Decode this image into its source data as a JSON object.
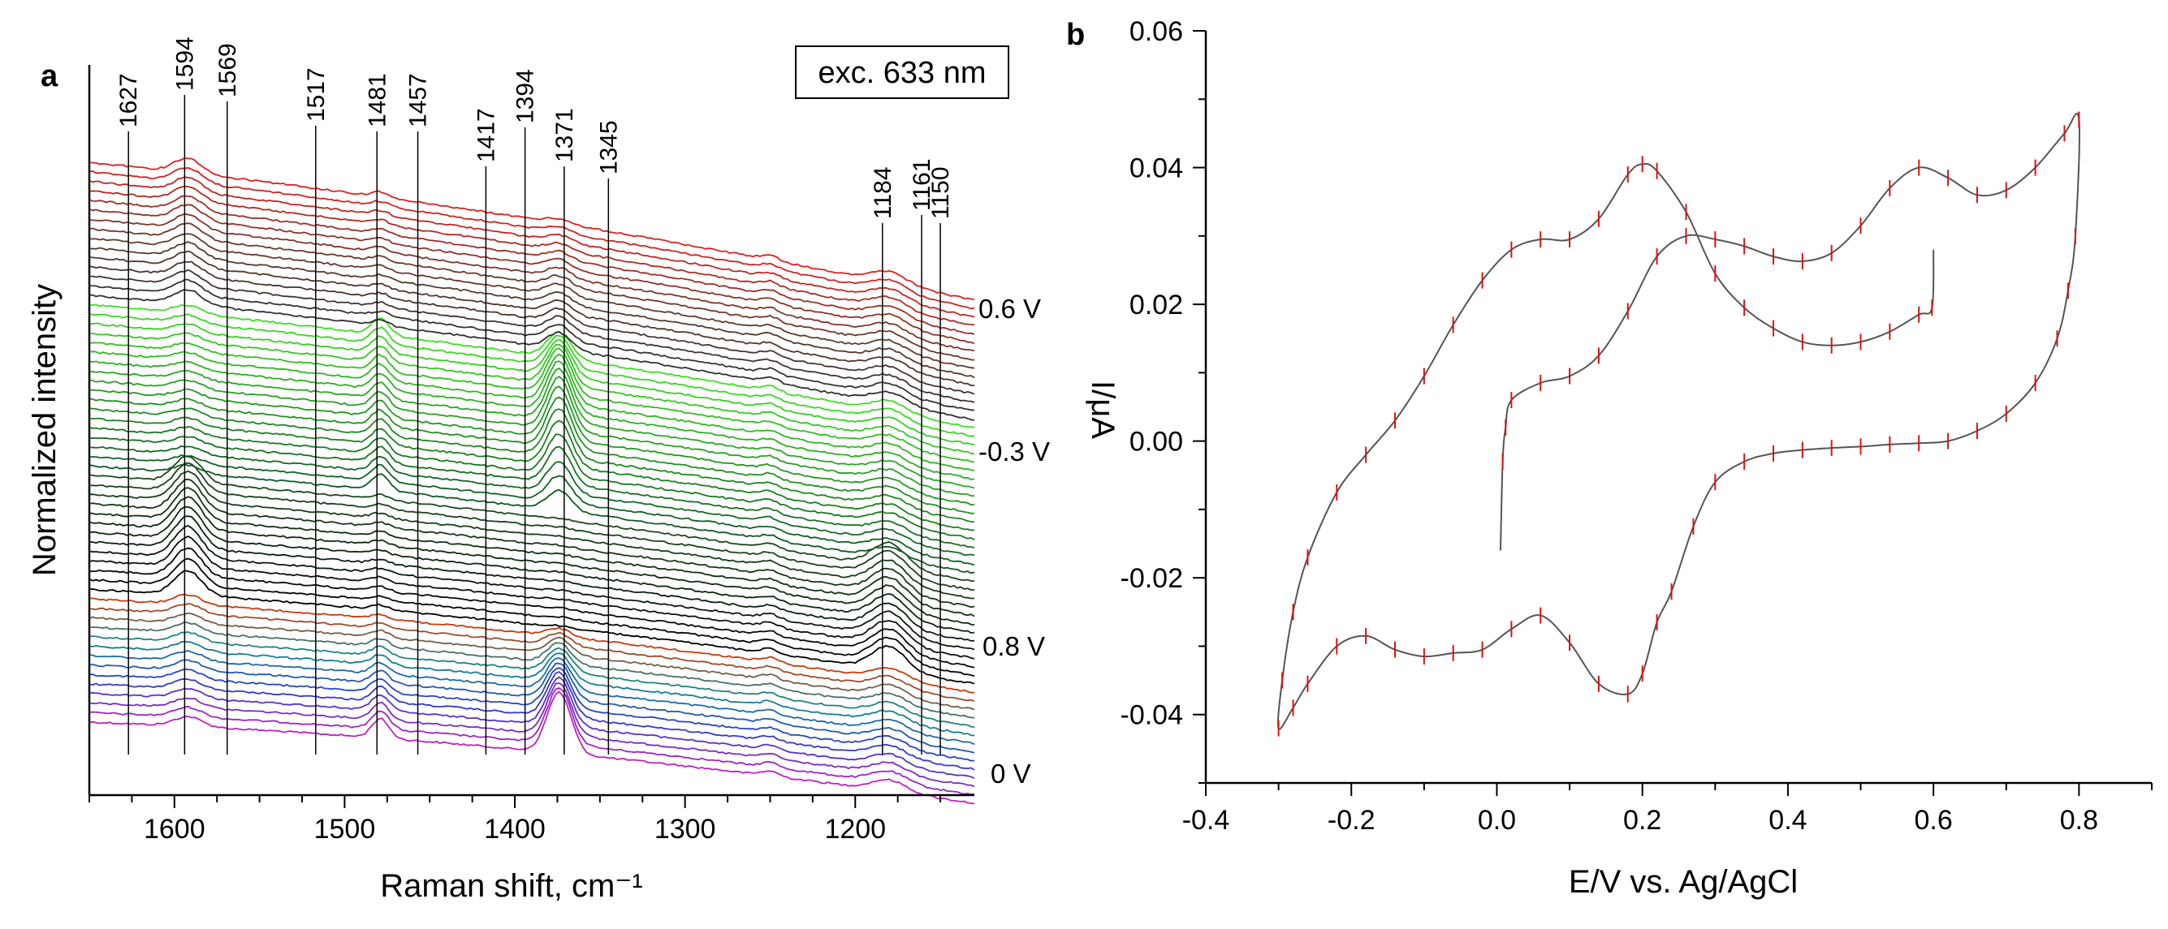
{
  "panel_a": {
    "label": "a",
    "legend": "exc. 633 nm",
    "voltage_labels": [
      "0.6 V",
      "-0.3 V",
      "0.8 V",
      "0 V"
    ]
  },
  "panel_b": {
    "label": "b"
  },
  "chart_data": [
    {
      "type": "line",
      "title": "",
      "xlabel": "Raman shift, cm⁻¹",
      "ylabel": "Normalized intensity",
      "xlim": [
        1650,
        1130
      ],
      "x_ticks": [
        1600,
        1500,
        1400,
        1300,
        1200
      ],
      "y_ticks_shown": false,
      "peak_markers": [
        1627,
        1594,
        1569,
        1517,
        1481,
        1457,
        1417,
        1394,
        1371,
        1345,
        1184,
        1161,
        1150
      ],
      "spectra_count": 60,
      "series": [
        {
          "name": "0 V → 0.8 V",
          "count": 14,
          "colors": [
            "#c020c0",
            "#2a3ad0",
            "#108a8a",
            "#c83a10"
          ]
        },
        {
          "name": "0.8 V → -0.3 V",
          "count": 13,
          "colors": [
            "#000000",
            "#1a4a1a"
          ]
        },
        {
          "name": "-0.3 V → 0.6 V",
          "count": 18,
          "colors": [
            "#0e5a22",
            "#3ae020"
          ]
        },
        {
          "name": "0.6 V →",
          "count": 15,
          "colors": [
            "#303030",
            "#6b3a2a",
            "#e02020"
          ]
        }
      ]
    },
    {
      "type": "line",
      "title": "",
      "xlabel": "E/V vs. Ag/AgCl",
      "ylabel": "I/μA",
      "xlim": [
        -0.4,
        0.9
      ],
      "ylim": [
        -0.05,
        0.06
      ],
      "x_ticks": [
        "-0.4",
        "-0.2",
        "0.0",
        "0.2",
        "0.4",
        "0.6",
        "0.8"
      ],
      "y_ticks": [
        "0.06",
        "0.04",
        "0.02",
        "0.00",
        "-0.02",
        "-0.04"
      ],
      "series": [
        {
          "name": "cyclic voltammogram",
          "color": "#555555",
          "marker_color": "#e01010",
          "points": [
            [
              0.005,
              -0.016
            ],
            [
              0.008,
              -0.003
            ],
            [
              0.012,
              0.002
            ],
            [
              0.02,
              0.006
            ],
            [
              0.06,
              0.0085
            ],
            [
              0.1,
              0.0095
            ],
            [
              0.14,
              0.0125
            ],
            [
              0.18,
              0.019
            ],
            [
              0.22,
              0.027
            ],
            [
              0.26,
              0.03
            ],
            [
              0.3,
              0.0295
            ],
            [
              0.34,
              0.0285
            ],
            [
              0.38,
              0.027
            ],
            [
              0.42,
              0.0263
            ],
            [
              0.46,
              0.0275
            ],
            [
              0.5,
              0.0315
            ],
            [
              0.54,
              0.037
            ],
            [
              0.58,
              0.04
            ],
            [
              0.62,
              0.0385
            ],
            [
              0.66,
              0.036
            ],
            [
              0.7,
              0.0367
            ],
            [
              0.74,
              0.04
            ],
            [
              0.78,
              0.045
            ],
            [
              0.8,
              0.047
            ],
            [
              0.795,
              0.03
            ],
            [
              0.785,
              0.022
            ],
            [
              0.77,
              0.015
            ],
            [
              0.74,
              0.0085
            ],
            [
              0.7,
              0.004
            ],
            [
              0.66,
              0.0015
            ],
            [
              0.62,
              0.0
            ],
            [
              0.58,
              -0.0003
            ],
            [
              0.54,
              -0.0005
            ],
            [
              0.5,
              -0.0008
            ],
            [
              0.46,
              -0.001
            ],
            [
              0.42,
              -0.0013
            ],
            [
              0.38,
              -0.0018
            ],
            [
              0.34,
              -0.003
            ],
            [
              0.3,
              -0.006
            ],
            [
              0.27,
              -0.0125
            ],
            [
              0.24,
              -0.022
            ],
            [
              0.22,
              -0.0265
            ],
            [
              0.2,
              -0.034
            ],
            [
              0.18,
              -0.037
            ],
            [
              0.14,
              -0.0355
            ],
            [
              0.1,
              -0.0295
            ],
            [
              0.06,
              -0.0255
            ],
            [
              0.02,
              -0.0275
            ],
            [
              -0.02,
              -0.0305
            ],
            [
              -0.06,
              -0.031
            ],
            [
              -0.1,
              -0.0315
            ],
            [
              -0.14,
              -0.0305
            ],
            [
              -0.18,
              -0.0285
            ],
            [
              -0.22,
              -0.03
            ],
            [
              -0.26,
              -0.0355
            ],
            [
              -0.28,
              -0.039
            ],
            [
              -0.3,
              -0.042
            ],
            [
              -0.295,
              -0.035
            ],
            [
              -0.28,
              -0.025
            ],
            [
              -0.26,
              -0.017
            ],
            [
              -0.22,
              -0.0075
            ],
            [
              -0.18,
              -0.002
            ],
            [
              -0.14,
              0.003
            ],
            [
              -0.1,
              0.0095
            ],
            [
              -0.06,
              0.017
            ],
            [
              -0.02,
              0.0235
            ],
            [
              0.02,
              0.028
            ],
            [
              0.06,
              0.0295
            ],
            [
              0.1,
              0.0295
            ],
            [
              0.14,
              0.0325
            ],
            [
              0.18,
              0.039
            ],
            [
              0.2,
              0.0405
            ],
            [
              0.22,
              0.0395
            ],
            [
              0.26,
              0.0335
            ],
            [
              0.3,
              0.0245
            ],
            [
              0.34,
              0.0195
            ],
            [
              0.38,
              0.0165
            ],
            [
              0.42,
              0.0145
            ],
            [
              0.46,
              0.014
            ],
            [
              0.5,
              0.0145
            ],
            [
              0.54,
              0.016
            ],
            [
              0.58,
              0.0185
            ],
            [
              0.598,
              0.0195
            ],
            [
              0.6,
              0.028
            ]
          ]
        }
      ]
    }
  ]
}
